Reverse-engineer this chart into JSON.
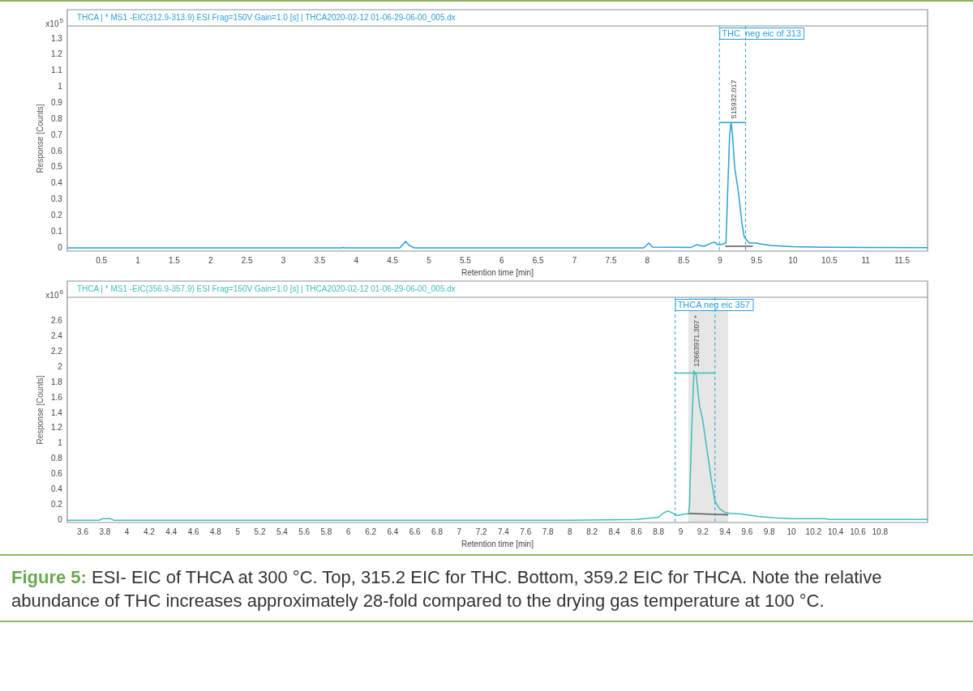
{
  "chart_data": [
    {
      "type": "line",
      "title": "THCA | * MS1 -EIC(312.9-313.9) ESI Frag=150V Gain=1.0 [s] | THCA2020-02-12 01-06-29-06-00_005.dx",
      "xlabel": "Retention time [min]",
      "ylabel": "Response [Counts]",
      "xlim": [
        0.03,
        11.85
      ],
      "ylim": [
        -0.02,
        1.38
      ],
      "xticks": [
        0.5,
        1,
        1.5,
        2,
        2.5,
        3,
        3.5,
        4,
        4.5,
        5,
        5.5,
        6,
        6.5,
        7,
        7.5,
        8,
        8.5,
        9,
        9.5,
        10,
        10.5,
        11,
        11.5
      ],
      "yticks": [
        0,
        0.1,
        0.2,
        0.3,
        0.4,
        0.5,
        0.6,
        0.7,
        0.8,
        0.9,
        1,
        1.1,
        1.2,
        1.3
      ],
      "grid": false,
      "legend": false,
      "marker": "none",
      "series": [
        {
          "color": "#2a9fd8",
          "x": [
            0.03,
            3.8,
            3.82,
            3.85,
            4.6,
            4.68,
            4.73,
            4.8,
            7.95,
            8.02,
            8.07,
            8.6,
            8.68,
            8.72,
            8.78,
            8.88,
            8.93,
            8.97,
            9.0,
            9.05,
            9.08,
            9.1,
            9.13,
            9.15,
            9.17,
            9.2,
            9.25,
            9.3,
            9.33,
            9.36,
            9.4,
            9.5,
            9.55,
            9.7,
            10,
            10.5,
            11,
            11.85
          ],
          "values": [
            0,
            0,
            0.003,
            0,
            0,
            0.04,
            0.015,
            0,
            0,
            0.03,
            0.005,
            0.003,
            0.02,
            0.015,
            0.01,
            0.03,
            0.035,
            0.02,
            0.02,
            0.025,
            0.03,
            0.3,
            0.7,
            0.78,
            0.7,
            0.5,
            0.35,
            0.15,
            0.07,
            0.05,
            0.03,
            0.03,
            0.025,
            0.015,
            0.008,
            0.004,
            0.003,
            0.002
          ]
        },
        {
          "color": "#555555",
          "x": [
            9.07,
            9.45
          ],
          "values": [
            0.01,
            0.01
          ]
        },
        {
          "color": "#2a9fd8",
          "x": [
            8.99,
            9.35
          ],
          "values": [
            0.78,
            0.78
          ]
        }
      ],
      "ref_lines": [
        {
          "axis": "x",
          "value": 8.99,
          "label": "THC  neg eic of 313",
          "color": "#2a9fd8",
          "line_style": "dashed"
        },
        {
          "axis": "x",
          "value": 9.35,
          "color": "#2a9fd8",
          "line_style": "dashed"
        }
      ],
      "annotations": [
        "x10$^{5}$",
        {
          "text": "515932.017",
          "x": 9.15,
          "y": 0.78
        }
      ]
    },
    {
      "type": "line",
      "title": "THCA | * MS1 -EIC(356.9-357.9) ESI Frag=150V Gain=1.0 [s] | THCA2020-02-12 01-06-29-06-00_005.dx",
      "xlabel": "Retention time [min]",
      "ylabel": "Response [Counts]",
      "xlim": [
        3.46,
        11.23
      ],
      "ylim": [
        -0.03,
        2.91
      ],
      "xticks": [
        3.6,
        3.8,
        4,
        4.2,
        4.4,
        4.6,
        4.8,
        5,
        5.2,
        5.4,
        5.6,
        5.8,
        6,
        6.2,
        6.4,
        6.6,
        6.8,
        7,
        7.2,
        7.4,
        7.6,
        7.8,
        8,
        8.2,
        8.4,
        8.6,
        8.8,
        9,
        9.2,
        9.4,
        9.6,
        9.8,
        10,
        10.2,
        10.4,
        10.6,
        10.8
      ],
      "yticks": [
        0,
        0.2,
        0.4,
        0.6,
        0.8,
        1,
        1.2,
        1.4,
        1.6,
        1.8,
        2,
        2.2,
        2.4,
        2.6
      ],
      "grid": false,
      "legend": false,
      "marker": "none",
      "series": [
        {
          "color": "#3dbdb8",
          "x": [
            3.46,
            3.75,
            3.78,
            3.85,
            3.88,
            8.0,
            8.6,
            8.8,
            8.85,
            8.89,
            8.93,
            8.97,
            9.03,
            9.07,
            9.08,
            9.1,
            9.12,
            9.14,
            9.17,
            9.2,
            9.24,
            9.28,
            9.31,
            9.35,
            9.4,
            9.45,
            9.55,
            9.7,
            9.85,
            10,
            10.3,
            10.35,
            11.23
          ],
          "values": [
            0,
            0,
            0.02,
            0.02,
            0,
            0,
            0.01,
            0.04,
            0.1,
            0.12,
            0.09,
            0.06,
            0.08,
            0.08,
            0.2,
            1.2,
            1.95,
            1.9,
            1.5,
            1.3,
            0.9,
            0.5,
            0.25,
            0.15,
            0.1,
            0.09,
            0.08,
            0.05,
            0.03,
            0.02,
            0.02,
            0.01,
            0.01
          ]
        },
        {
          "color": "#555555",
          "x": [
            9.07,
            9.43
          ],
          "values": [
            0.09,
            0.07
          ]
        },
        {
          "color": "#3dbdb8",
          "x": [
            8.95,
            9.31
          ],
          "values": [
            1.92,
            1.92
          ]
        }
      ],
      "ref_lines": [
        {
          "axis": "x",
          "value": 8.95,
          "label": "THCA neg eic 357",
          "color": "#2a9fd8",
          "line_style": "dashed"
        },
        {
          "axis": "x",
          "value": 9.31,
          "color": "#2a9fd8",
          "line_style": "dashed"
        }
      ],
      "bands": [
        {
          "axis": "x",
          "from": 9.07,
          "to": 9.43,
          "color": "#e6e6e6"
        }
      ],
      "annotations": [
        "x10$^{6}$",
        {
          "text": "12663971.307 *",
          "x": 9.12,
          "y": 1.95
        },
        "Figure 5: ESI- EIC of THCA at 300 °C. Top, 315.2 EIC for THC. Bottom, 359.2 EIC for THCA. Note the relative abundance of THC increases approximately 28-fold compared to the drying gas temperature at 100 °C."
      ]
    }
  ]
}
